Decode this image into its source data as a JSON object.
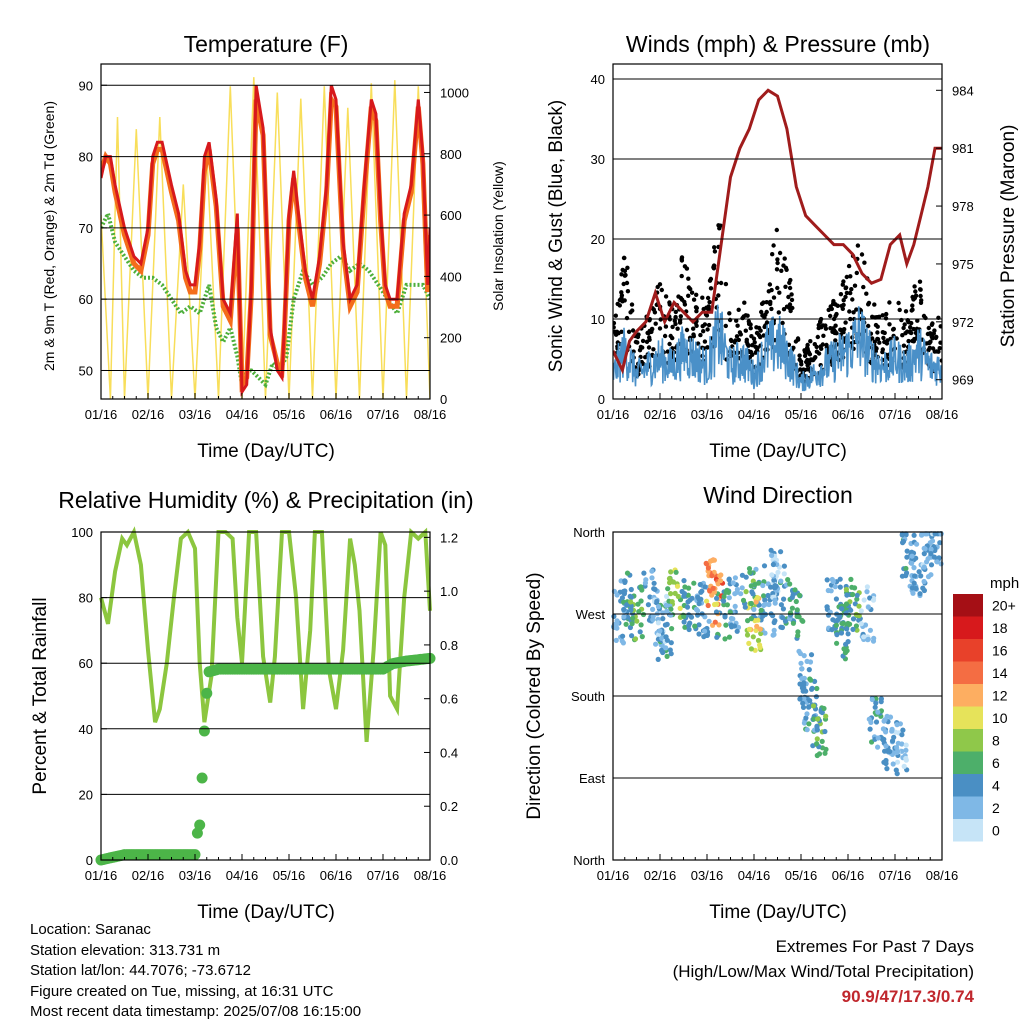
{
  "panels": {
    "temperature": {
      "title": "Temperature (F)",
      "xlabel": "Time (Day/UTC)",
      "ylabel_left": "2m & 9m T (Red, Orange) & 2m Td (Green)",
      "ylabel_right": "Solar Insolation (Yellow)"
    },
    "winds": {
      "title": "Winds (mph) & Pressure (mb)",
      "xlabel": "Time (Day/UTC)",
      "ylabel_left": "Sonic Wind & Gust (Blue, Black)",
      "ylabel_right": "Station Pressure (Maroon)"
    },
    "humidity": {
      "title": "Relative Humidity (%) & Precipitation (in)",
      "xlabel": "Time (Day/UTC)",
      "ylabel_left": "Percent & Total Rainfall"
    },
    "direction": {
      "title": "Wind Direction",
      "xlabel": "Time (Day/UTC)",
      "ylabel_left": "Direction (Colored By Speed)",
      "legend_title": "mph",
      "legend_labels": [
        "20+",
        "18",
        "16",
        "14",
        "12",
        "10",
        "8",
        "6",
        "4",
        "2",
        "0"
      ],
      "legend_colors": [
        "#a50f15",
        "#d7191c",
        "#e8412a",
        "#f46d43",
        "#fdae61",
        "#e6e35a",
        "#8fc84a",
        "#4daf6a",
        "#4a8fc4",
        "#7fb8e6",
        "#c6e4f7"
      ]
    }
  },
  "colors": {
    "temp_2m": "#d7191c",
    "temp_9m": "#f46d1b",
    "dewpoint": "#4daf3a",
    "solar": "#f8de5a",
    "wind": "#4a90c8",
    "gust": "#000000",
    "pressure": "#a01c1c",
    "rh": "#8cc63f",
    "precip": "#4cb548"
  },
  "chart_data": [
    {
      "type": "line",
      "title": "Temperature (F)",
      "xlabel": "Time (Day/UTC)",
      "ylabel": "2m & 9m T (Red, Orange) & 2m Td (Green)",
      "y2label": "Solar Insolation (Yellow)",
      "x_ticks": [
        "01/16",
        "02/16",
        "03/16",
        "04/16",
        "05/16",
        "06/16",
        "07/16",
        "08/16"
      ],
      "xlim": [
        0,
        7
      ],
      "ylim": [
        46,
        92
      ],
      "yticks": [
        50,
        60,
        70,
        80,
        90
      ],
      "y2lim": [
        0,
        1070
      ],
      "y2ticks": [
        0,
        200,
        400,
        600,
        800,
        1000
      ],
      "series": [
        {
          "name": "2m T",
          "axis": "left",
          "x": [
            0,
            0.1,
            0.2,
            0.3,
            0.5,
            0.7,
            0.85,
            1.0,
            1.1,
            1.2,
            1.3,
            1.5,
            1.65,
            1.8,
            1.9,
            2.0,
            2.1,
            2.2,
            2.3,
            2.45,
            2.6,
            2.75,
            2.9,
            3.0,
            3.1,
            3.2,
            3.3,
            3.45,
            3.6,
            3.75,
            3.85,
            3.9,
            4.0,
            4.1,
            4.2,
            4.35,
            4.5,
            4.65,
            4.8,
            4.9,
            5.0,
            5.15,
            5.3,
            5.45,
            5.6,
            5.75,
            5.85,
            5.95,
            6.05,
            6.15,
            6.3,
            6.45,
            6.6,
            6.75,
            6.85,
            6.95,
            7.0
          ],
          "values": [
            77,
            80,
            80,
            76,
            70,
            66,
            65,
            70,
            80,
            82,
            82,
            76,
            72,
            64,
            62,
            62,
            68,
            80,
            82,
            74,
            60,
            58,
            72,
            47,
            48,
            62,
            90,
            84,
            56,
            50,
            49,
            56,
            72,
            78,
            72,
            64,
            60,
            66,
            76,
            90,
            88,
            68,
            60,
            62,
            76,
            88,
            86,
            72,
            62,
            60,
            60,
            72,
            76,
            88,
            80,
            62,
            70
          ]
        },
        {
          "name": "9m T",
          "axis": "left",
          "x": [
            0,
            0.1,
            0.2,
            0.3,
            0.5,
            0.7,
            0.85,
            1.0,
            1.1,
            1.2,
            1.3,
            1.5,
            1.65,
            1.8,
            1.9,
            2.0,
            2.1,
            2.2,
            2.3,
            2.45,
            2.6,
            2.75,
            2.9,
            3.0,
            3.1,
            3.2,
            3.3,
            3.45,
            3.6,
            3.75,
            3.85,
            3.9,
            4.0,
            4.1,
            4.2,
            4.35,
            4.5,
            4.65,
            4.8,
            4.9,
            5.0,
            5.15,
            5.3,
            5.45,
            5.6,
            5.75,
            5.85,
            5.95,
            6.05,
            6.15,
            6.3,
            6.45,
            6.6,
            6.75,
            6.85,
            6.95,
            7.0
          ],
          "values": [
            78,
            80,
            79,
            75,
            69,
            65,
            64,
            69,
            79,
            81,
            81,
            75,
            71,
            63,
            61,
            61,
            67,
            78,
            81,
            73,
            59,
            57,
            70,
            48,
            49,
            61,
            88,
            83,
            55,
            51,
            50,
            55,
            71,
            77,
            71,
            63,
            59,
            65,
            75,
            88,
            87,
            67,
            59,
            61,
            75,
            87,
            85,
            71,
            61,
            59,
            59,
            71,
            75,
            87,
            79,
            61,
            69
          ]
        },
        {
          "name": "2m Td",
          "axis": "left",
          "x": [
            0,
            0.15,
            0.3,
            0.5,
            0.7,
            0.9,
            1.1,
            1.3,
            1.5,
            1.7,
            1.9,
            2.1,
            2.3,
            2.45,
            2.6,
            2.75,
            2.9,
            3.0,
            3.1,
            3.2,
            3.35,
            3.5,
            3.65,
            3.8,
            3.95,
            4.1,
            4.3,
            4.5,
            4.7,
            4.9,
            5.1,
            5.3,
            5.5,
            5.7,
            5.9,
            6.1,
            6.3,
            6.5,
            6.7,
            6.85,
            7.0
          ],
          "values": [
            70,
            72,
            68,
            66,
            64,
            63,
            63,
            62,
            60,
            58,
            59,
            58,
            62,
            56,
            54,
            56,
            52,
            48,
            50,
            50,
            49,
            48,
            51,
            50,
            52,
            60,
            64,
            62,
            63,
            65,
            66,
            64,
            65,
            64,
            62,
            60,
            58,
            62,
            62,
            62,
            60
          ]
        },
        {
          "name": "Solar Insolation",
          "axis": "right",
          "x": [
            0,
            0.2,
            0.35,
            0.5,
            0.75,
            1.0,
            1.25,
            1.5,
            1.75,
            2.0,
            2.25,
            2.5,
            2.75,
            3.0,
            3.25,
            3.5,
            3.75,
            4.0,
            4.25,
            4.5,
            4.75,
            5.0,
            5.25,
            5.5,
            5.75,
            6.0,
            6.25,
            6.5,
            6.75,
            7.0
          ],
          "values": [
            600,
            0,
            920,
            0,
            880,
            0,
            920,
            0,
            700,
            0,
            800,
            0,
            1020,
            0,
            1050,
            0,
            1000,
            0,
            980,
            0,
            1020,
            0,
            950,
            0,
            1030,
            0,
            1040,
            0,
            1020,
            0
          ]
        }
      ]
    },
    {
      "type": "line",
      "title": "Winds (mph) & Pressure (mb)",
      "xlabel": "Time (Day/UTC)",
      "ylabel": "Sonic Wind & Gust (Blue, Black)",
      "y2label": "Station Pressure (Maroon)",
      "x_ticks": [
        "01/16",
        "02/16",
        "03/16",
        "04/16",
        "05/16",
        "06/16",
        "07/16",
        "08/16"
      ],
      "xlim": [
        0,
        7
      ],
      "ylim": [
        0,
        41
      ],
      "yticks": [
        0,
        10,
        20,
        30,
        40
      ],
      "y2lim": [
        968,
        985
      ],
      "y2ticks": [
        969,
        972,
        975,
        978,
        981,
        984
      ],
      "series": [
        {
          "name": "Wind",
          "axis": "left",
          "x": [
            0,
            0.25,
            0.5,
            0.75,
            1.0,
            1.25,
            1.5,
            1.75,
            2.0,
            2.25,
            2.5,
            2.75,
            3.0,
            3.25,
            3.5,
            3.75,
            4.0,
            4.25,
            4.5,
            4.75,
            5.0,
            5.25,
            5.5,
            5.75,
            6.0,
            6.25,
            6.5,
            6.75,
            7.0
          ],
          "values": [
            3,
            6,
            3,
            4,
            5,
            4,
            6,
            5,
            4,
            8,
            4,
            5,
            3,
            6,
            7,
            5,
            2,
            3,
            4,
            5,
            6,
            8,
            5,
            4,
            5,
            4,
            6,
            4,
            4
          ]
        },
        {
          "name": "Gust",
          "axis": "left",
          "x": [
            0,
            0.25,
            0.5,
            0.75,
            1.0,
            1.25,
            1.5,
            1.75,
            2.0,
            2.25,
            2.5,
            2.75,
            3.0,
            3.25,
            3.5,
            3.75,
            4.0,
            4.25,
            4.5,
            4.75,
            5.0,
            5.25,
            5.5,
            5.75,
            6.0,
            6.25,
            6.5,
            6.75,
            7.0
          ],
          "values": [
            10,
            14,
            6,
            8,
            12,
            9,
            14,
            10,
            9,
            18,
            7,
            10,
            6,
            12,
            16,
            12,
            4,
            6,
            8,
            10,
            12,
            16,
            9,
            8,
            10,
            8,
            12,
            7,
            8
          ]
        },
        {
          "name": "Station Pressure",
          "axis": "right",
          "x": [
            0,
            0.2,
            0.35,
            0.5,
            0.7,
            0.9,
            1.1,
            1.3,
            1.5,
            1.7,
            1.9,
            2.1,
            2.3,
            2.5,
            2.7,
            2.9,
            3.1,
            3.3,
            3.5,
            3.7,
            3.9,
            4.1,
            4.3,
            4.5,
            4.7,
            4.9,
            5.1,
            5.3,
            5.5,
            5.7,
            5.9,
            6.1,
            6.25,
            6.4,
            6.55,
            6.7,
            6.85,
            7.0
          ],
          "values": [
            970.5,
            969.5,
            971,
            971.5,
            972,
            973.5,
            972,
            973,
            972.5,
            972,
            972.5,
            972.5,
            976,
            979.5,
            981,
            982,
            983.5,
            984,
            983.7,
            982,
            979,
            977.5,
            977,
            976.5,
            976,
            976,
            975.5,
            974.5,
            974,
            974.2,
            976,
            976.5,
            975,
            976,
            977.5,
            979,
            981,
            981
          ]
        }
      ]
    },
    {
      "type": "line",
      "title": "Relative Humidity (%) & Precipitation (in)",
      "xlabel": "Time (Day/UTC)",
      "ylabel": "Percent & Total Rainfall",
      "x_ticks": [
        "01/16",
        "02/16",
        "03/16",
        "04/16",
        "05/16",
        "06/16",
        "07/16",
        "08/16"
      ],
      "xlim": [
        0,
        7
      ],
      "ylim": [
        0,
        100
      ],
      "yticks": [
        0,
        20,
        40,
        60,
        80,
        100
      ],
      "y2lim": [
        0,
        1.22
      ],
      "y2ticks": [
        0.0,
        0.2,
        0.4,
        0.6,
        0.8,
        1.0,
        1.2
      ],
      "series": [
        {
          "name": "RH",
          "axis": "left",
          "x": [
            0,
            0.15,
            0.3,
            0.45,
            0.55,
            0.7,
            0.85,
            1.0,
            1.15,
            1.25,
            1.4,
            1.55,
            1.7,
            1.85,
            2.0,
            2.1,
            2.2,
            2.35,
            2.5,
            2.65,
            2.8,
            2.9,
            3.0,
            3.15,
            3.3,
            3.45,
            3.6,
            3.7,
            3.85,
            4.0,
            4.15,
            4.3,
            4.45,
            4.55,
            4.7,
            4.85,
            5.0,
            5.15,
            5.3,
            5.4,
            5.5,
            5.65,
            5.8,
            5.95,
            6.05,
            6.15,
            6.3,
            6.45,
            6.6,
            6.75,
            6.9,
            7.0
          ],
          "values": [
            80,
            72,
            88,
            98,
            96,
            100,
            90,
            64,
            42,
            46,
            60,
            80,
            98,
            100,
            95,
            60,
            42,
            56,
            100,
            100,
            98,
            74,
            60,
            100,
            100,
            62,
            48,
            62,
            100,
            100,
            80,
            46,
            70,
            100,
            100,
            58,
            46,
            64,
            98,
            90,
            76,
            36,
            64,
            100,
            96,
            50,
            46,
            80,
            100,
            98,
            100,
            76
          ]
        },
        {
          "name": "Total Rainfall",
          "axis": "right",
          "x": [
            0,
            0.5,
            1.0,
            1.5,
            2.0,
            2.05,
            2.1,
            2.2,
            2.25,
            2.3,
            2.5,
            3.0,
            3.5,
            4.0,
            4.5,
            5.0,
            5.5,
            6.0,
            6.2,
            6.5,
            7.0
          ],
          "values": [
            0.0,
            0.02,
            0.02,
            0.02,
            0.02,
            0.1,
            0.13,
            0.48,
            0.62,
            0.7,
            0.71,
            0.71,
            0.71,
            0.71,
            0.71,
            0.71,
            0.71,
            0.71,
            0.73,
            0.74,
            0.75
          ]
        }
      ]
    },
    {
      "type": "scatter",
      "title": "Wind Direction",
      "xlabel": "Time (Day/UTC)",
      "ylabel": "Direction (Colored By Speed)",
      "x_ticks": [
        "01/16",
        "02/16",
        "03/16",
        "04/16",
        "05/16",
        "06/16",
        "07/16",
        "08/16"
      ],
      "xlim": [
        0,
        7
      ],
      "ylim": [
        0,
        360
      ],
      "y_tick_labels": [
        "North",
        "East",
        "South",
        "West",
        "North"
      ],
      "yticks": [
        0,
        90,
        180,
        270,
        360
      ],
      "series": [
        {
          "name": "Direction",
          "x": [
            0.1,
            0.3,
            0.5,
            0.8,
            1.0,
            1.1,
            1.3,
            1.6,
            1.9,
            2.1,
            2.2,
            2.35,
            2.6,
            2.9,
            3.0,
            3.1,
            3.3,
            3.5,
            3.7,
            3.9,
            4.1,
            4.2,
            4.4,
            4.7,
            4.9,
            5.1,
            5.4,
            5.6,
            5.9,
            6.1,
            6.3,
            6.5,
            6.7,
            6.9
          ],
          "values": [
            265,
            285,
            270,
            290,
            260,
            250,
            290,
            280,
            275,
            300,
            285,
            270,
            280,
            290,
            260,
            295,
            275,
            310,
            280,
            270,
            200,
            170,
            140,
            280,
            250,
            280,
            270,
            150,
            130,
            120,
            330,
            320,
            340,
            350
          ],
          "speeds": [
            3,
            4,
            6,
            3,
            2,
            4,
            8,
            5,
            3,
            12,
            14,
            5,
            3,
            6,
            10,
            4,
            3,
            2,
            4,
            5,
            3,
            4,
            6,
            3,
            5,
            6,
            2,
            4,
            3,
            2,
            4,
            3,
            2,
            3
          ]
        }
      ]
    }
  ],
  "footer": {
    "location": "Location: Saranac",
    "elevation": "Station elevation: 313.731 m",
    "latlon": "Station lat/lon: 44.7076; -73.6712",
    "created": "Figure created on Tue, missing, at 16:31 UTC",
    "recent": "Most recent data timestamp: 2025/07/08 16:15:00",
    "extremes_title": "Extremes For Past 7 Days",
    "extremes_sub": "(High/Low/Max Wind/Total Precipitation)",
    "extremes_values": "90.9/47/17.3/0.74"
  }
}
